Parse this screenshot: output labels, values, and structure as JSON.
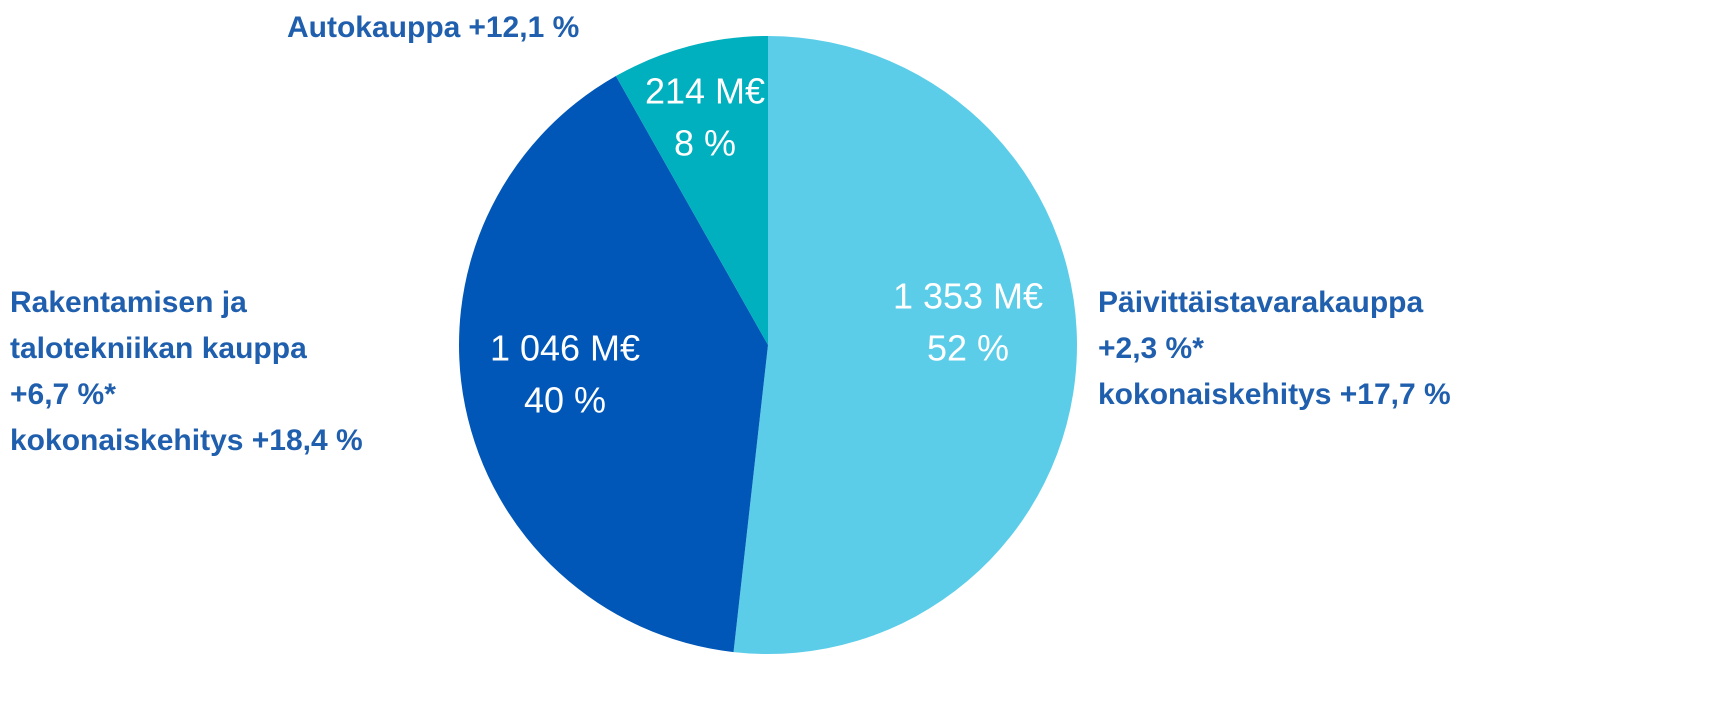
{
  "chart_data": {
    "type": "pie",
    "categories": [
      "Päivittäistavarakauppa",
      "Rakentamisen ja talotekniikan kauppa",
      "Autokauppa"
    ],
    "values": [
      1353,
      1046,
      214
    ],
    "value_labels": [
      "1 353 M€",
      "1 046 M€",
      "214 M€"
    ],
    "percents": [
      52,
      40,
      8
    ],
    "percent_labels": [
      "52 %",
      "40 %",
      "8 %"
    ],
    "notes": [
      [
        "+2,3 %*",
        "kokonaiskehitys +17,7 %"
      ],
      [
        "+6,7 %*",
        "kokonaiskehitys +18,4 %"
      ],
      [
        "+12,1 %"
      ]
    ],
    "colors": [
      "#5bcde9",
      "#0057b8",
      "#00b0be"
    ],
    "start_angle": 0,
    "direction": "clockwise"
  }
}
